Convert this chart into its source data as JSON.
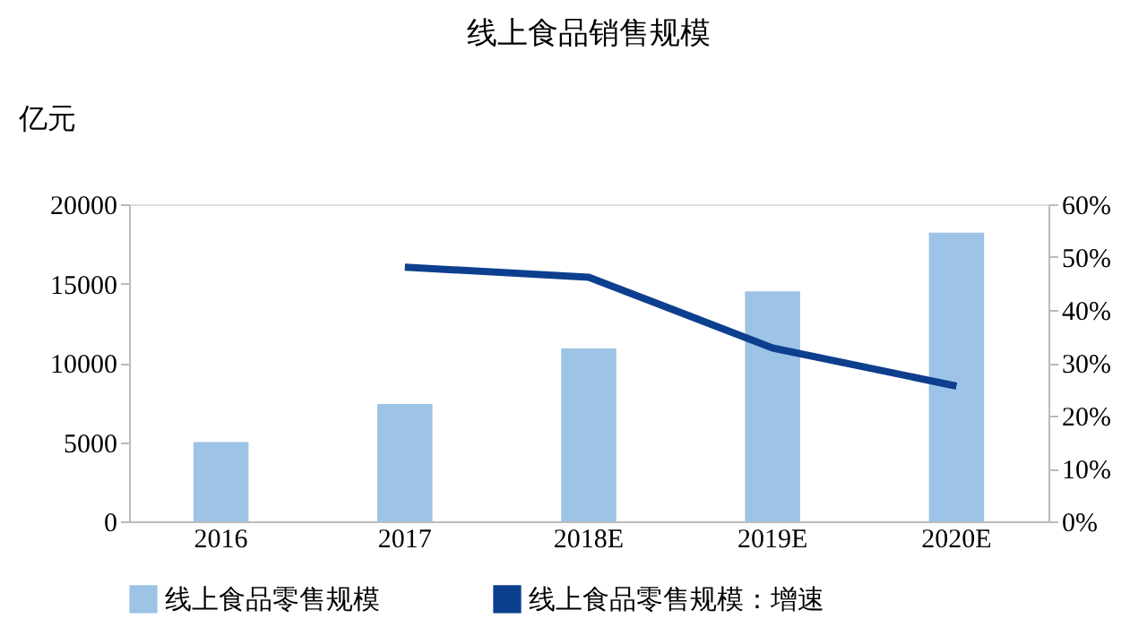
{
  "chart_data": {
    "type": "bar",
    "title": "线上食品销售规模",
    "ylabel": "亿元",
    "categories": [
      "2016",
      "2017",
      "2018E",
      "2019E",
      "2020E"
    ],
    "series": [
      {
        "name": "线上食品零售规模",
        "color": "#9dc3e6",
        "values": [
          5000,
          7400,
          10900,
          14500,
          18200
        ]
      },
      {
        "name": "线上食品零售规模：增速",
        "type": "line",
        "axis": "y2",
        "color": "#0d3f8f",
        "values": [
          null,
          48.1,
          46.2,
          32.8,
          25.6
        ]
      }
    ],
    "ylim": [
      0,
      20000
    ],
    "yticks": [
      0,
      5000,
      10000,
      15000,
      20000
    ],
    "y2lim": [
      0,
      60
    ],
    "y2ticks": [
      {
        "value": 0,
        "label": "0%"
      },
      {
        "value": 10,
        "label": "10%"
      },
      {
        "value": 20,
        "label": "20%"
      },
      {
        "value": 30,
        "label": "30%"
      },
      {
        "value": 40,
        "label": "40%"
      },
      {
        "value": 50,
        "label": "50%"
      },
      {
        "value": 60,
        "label": "60%"
      }
    ],
    "grid": false,
    "legend": "bottom",
    "marker": "none",
    "line_style": "solid"
  }
}
